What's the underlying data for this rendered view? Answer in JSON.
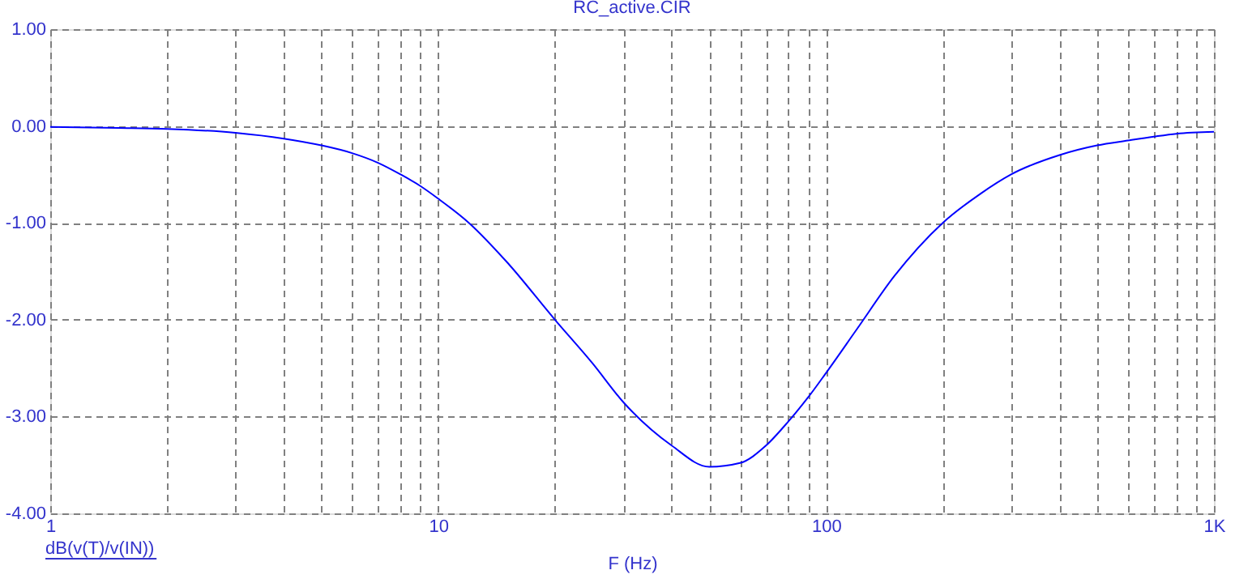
{
  "chart_data": {
    "type": "line",
    "title": "RC_active.CIR",
    "xlabel": "F (Hz)",
    "annotations": [
      "dB(v(T)/v(IN))"
    ],
    "log": "x",
    "grid": true,
    "x": [
      1,
      1.5,
      2,
      3,
      4,
      5,
      6,
      7,
      8,
      9,
      10,
      12,
      15,
      20,
      25,
      30,
      40,
      50,
      60,
      70,
      80,
      90,
      100,
      120,
      150,
      200,
      250,
      300,
      400,
      500,
      600,
      700,
      800,
      1000
    ],
    "series": [
      {
        "color": "#0000ff",
        "values": [
          -0.01,
          -0.02,
          -0.03,
          -0.07,
          -0.13,
          -0.2,
          -0.28,
          -0.38,
          -0.5,
          -0.62,
          -0.75,
          -1.0,
          -1.4,
          -2.0,
          -2.45,
          -2.85,
          -3.3,
          -3.52,
          -3.48,
          -3.3,
          -3.05,
          -2.8,
          -2.55,
          -2.1,
          -1.55,
          -1.0,
          -0.7,
          -0.5,
          -0.3,
          -0.2,
          -0.15,
          -0.11,
          -0.08,
          -0.06
        ]
      }
    ],
    "xlim": [
      1,
      1000
    ],
    "ylim": [
      -4,
      1
    ],
    "xticks": [
      1,
      {
        "value": 2,
        "label": null
      },
      {
        "value": 3,
        "label": null
      },
      {
        "value": 4,
        "label": null
      },
      {
        "value": 5,
        "label": null
      },
      {
        "value": 6,
        "label": null
      },
      {
        "value": 7,
        "label": null
      },
      {
        "value": 8,
        "label": null
      },
      {
        "value": 9,
        "label": null
      },
      10,
      {
        "value": 20,
        "label": null
      },
      {
        "value": 30,
        "label": null
      },
      {
        "value": 40,
        "label": null
      },
      {
        "value": 50,
        "label": null
      },
      {
        "value": 60,
        "label": null
      },
      {
        "value": 70,
        "label": null
      },
      {
        "value": 80,
        "label": null
      },
      {
        "value": 90,
        "label": null
      },
      100,
      {
        "value": 200,
        "label": null
      },
      {
        "value": 300,
        "label": null
      },
      {
        "value": 400,
        "label": null
      },
      {
        "value": 500,
        "label": null
      },
      {
        "value": 600,
        "label": null
      },
      {
        "value": 700,
        "label": null
      },
      {
        "value": 800,
        "label": null
      },
      {
        "value": 900,
        "label": null
      },
      {
        "value": 1000,
        "label": "1K"
      }
    ],
    "yticks": [
      {
        "value": -4,
        "label": "-4.00"
      },
      {
        "value": -3,
        "label": "-3.00"
      },
      {
        "value": -2,
        "label": "-2.00"
      },
      {
        "value": -1,
        "label": "-1.00"
      },
      {
        "value": 0,
        "label": "0.00"
      },
      {
        "value": 1,
        "label": "1.00"
      }
    ]
  }
}
